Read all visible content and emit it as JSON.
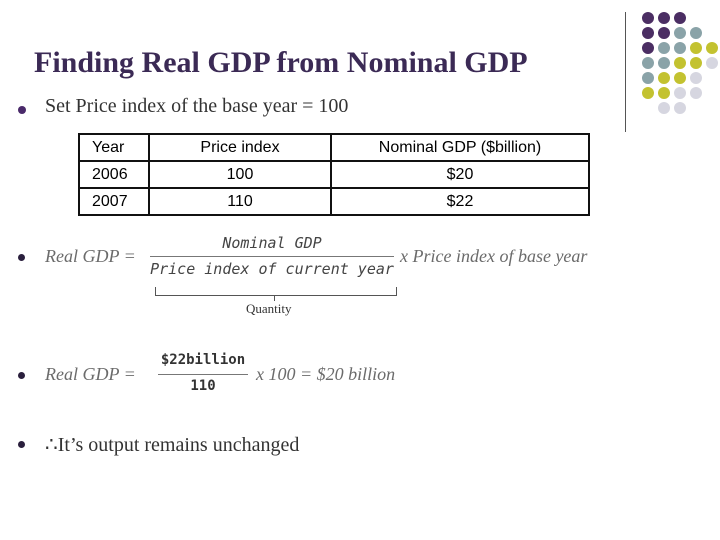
{
  "title": "Finding Real GDP from Nominal GDP",
  "bullets": {
    "base_year": "Set Price index  of the base year = 100",
    "conclusion": "∴It’s output remains  unchanged"
  },
  "table": {
    "headers": [
      "Year",
      "Price index",
      "Nominal GDP ($billion)"
    ],
    "rows": [
      [
        "2006",
        "100",
        "$20"
      ],
      [
        "2007",
        "110",
        "$22"
      ]
    ]
  },
  "formula1": {
    "lhs": "Real GDP =",
    "numerator": "Nominal GDP",
    "denominator": "Price index of  current year",
    "rhs": "x Price index of base year",
    "brace_label": "Quantity"
  },
  "formula2": {
    "lhs": "Real GDP =",
    "numerator": "$22billion",
    "denominator": "110",
    "rhs": "x 100 = $20 billion"
  },
  "colors": {
    "title": "#3b2a55",
    "dot_purple": "#4b2e63",
    "dot_teal": "#8aa3a8",
    "dot_olive": "#c3c230",
    "dot_light": "#d6d6e0"
  }
}
